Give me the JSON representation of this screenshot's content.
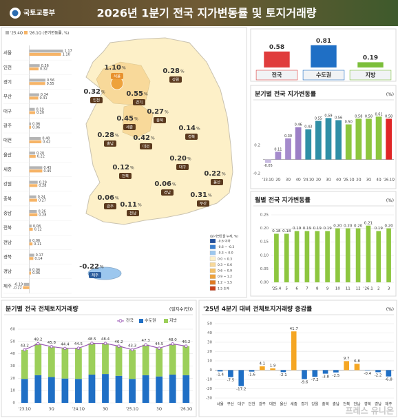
{
  "header": {
    "org": "국토교통부",
    "title": "2026년 1분기 전국 지가변동률 및 토지거래량",
    "watermark": "프레스 유니온"
  },
  "map": {
    "unit": "%",
    "legend_title": "(분기변동률 누계, %)",
    "legend": [
      {
        "label": "-0.6 이하",
        "color": "#1f4e9c"
      },
      {
        "label": "-0.6 ~ -0.3",
        "color": "#3b7fd0"
      },
      {
        "label": "-0.3 ~ 0.0",
        "color": "#9cc7ee"
      },
      {
        "label": "0.0 ~ 0.3",
        "color": "#fdf0c8"
      },
      {
        "label": "0.3 ~ 0.6",
        "color": "#f8d99a"
      },
      {
        "label": "0.6 ~ 0.9",
        "color": "#f3c066"
      },
      {
        "label": "0.9 ~ 1.2",
        "color": "#eea23c"
      },
      {
        "label": "1.2 ~ 1.5",
        "color": "#e07a22"
      },
      {
        "label": "1.5 초과",
        "color": "#c9401a"
      }
    ]
  },
  "chart_data": [
    {
      "type": "hbar",
      "subtitle": "(분기변동률, %)",
      "categories": [
        "서울",
        "인천",
        "경기",
        "부산",
        "대구",
        "광주",
        "대전",
        "울산",
        "세종",
        "강원",
        "충북",
        "충남",
        "전북",
        "전남",
        "경북",
        "경남",
        "제주"
      ],
      "series": [
        {
          "name": "'25.4Q",
          "color": "#b4b4b4",
          "values": [
            1.17,
            0.36,
            0.56,
            0.34,
            0.19,
            0.06,
            0.4,
            0.2,
            0.45,
            0.29,
            0.24,
            0.26,
            0.08,
            0.06,
            0.17,
            0.06,
            -0.19
          ],
          "value_labels": [
            "1.17",
            "0.36",
            "0.56",
            "0.34",
            "0.19",
            "0.06",
            "0.40",
            "0.20",
            "0.45",
            "0.29",
            "0.24",
            "0.26",
            "0.08",
            "0.06",
            "0.17",
            "0.06",
            "-0.19"
          ]
        },
        {
          "name": "'26.1Q",
          "color": "#f6b467",
          "values": [
            1.1,
            0.32,
            0.55,
            0.31,
            0.2,
            0.06,
            0.42,
            0.22,
            0.45,
            0.28,
            0.27,
            0.28,
            0.12,
            0.11,
            0.14,
            0.06,
            -0.22
          ],
          "value_labels": [
            "1.10",
            "0.32",
            "0.55",
            "0.31",
            "0.20",
            "0.06",
            "0.42",
            "0.22",
            "0.45",
            "0.28",
            "0.27",
            "0.28",
            "0.12",
            "0.11",
            "0.14",
            "0.06",
            "-0.22"
          ]
        }
      ],
      "xlim": [
        -0.3,
        1.3
      ]
    },
    {
      "type": "bar",
      "categories": [
        "전국",
        "수도권",
        "지방"
      ],
      "values": [
        0.58,
        0.81,
        0.19
      ],
      "colors": [
        "#e03c3c",
        "#1f6fc5",
        "#7cbf3a"
      ],
      "ylim": [
        0,
        1
      ]
    },
    {
      "type": "bar",
      "title": "분기별 전국 지가변동률",
      "unit": "(%)",
      "categories": [
        "'23.1Q",
        "2Q",
        "3Q",
        "4Q",
        "'24.1Q",
        "2Q",
        "3Q",
        "4Q",
        "'25.1Q",
        "2Q",
        "3Q",
        "4Q",
        "'26.1Q"
      ],
      "values": [
        -0.05,
        0.11,
        0.3,
        0.46,
        0.43,
        0.55,
        0.59,
        0.56,
        0.5,
        0.58,
        0.58,
        0.61,
        0.58
      ],
      "value_labels": [
        "-0.05",
        "0.11",
        "0.30",
        "0.46",
        "0.43",
        "0.55",
        "0.59",
        "0.56",
        "0.50",
        "0.58",
        "0.58",
        "0.61",
        "0.58"
      ],
      "colors": [
        "#c9bbe2",
        "#a58bcc",
        "#a58bcc",
        "#9c7fc6",
        "#2f8fa6",
        "#2f8fa6",
        "#2f8fa6",
        "#2f8fa6",
        "#8dc63f",
        "#8dc63f",
        "#8dc63f",
        "#8dc63f",
        "#e02626"
      ],
      "ylim": [
        -0.2,
        0.8
      ],
      "yticks": [
        -0.2,
        0.2
      ],
      "grid": false
    },
    {
      "type": "bar",
      "title": "월별 전국 지가변동률",
      "unit": "(%)",
      "categories": [
        "'25.4",
        "5",
        "6",
        "7",
        "8",
        "9",
        "10",
        "11",
        "12",
        "'26.1",
        "2",
        "3"
      ],
      "values": [
        0.18,
        0.18,
        0.19,
        0.19,
        0.19,
        0.19,
        0.2,
        0.2,
        0.2,
        0.21,
        0.19,
        0.2
      ],
      "value_labels": [
        "0.18",
        "0.18",
        "0.19",
        "0.19",
        "0.19",
        "0.19",
        "0.20",
        "0.20",
        "0.20",
        "0.21",
        "0.19",
        "0.20"
      ],
      "color": "#8dc63f",
      "ylim": [
        0,
        0.25
      ],
      "yticks": [
        {
          "value": 0,
          "label": "0.00"
        },
        {
          "value": 0.05,
          "label": "0.05"
        },
        {
          "value": 0.1,
          "label": "0.10"
        },
        {
          "value": 0.15,
          "label": "0.15"
        },
        {
          "value": 0.2,
          "label": "0.20"
        },
        {
          "value": 0.25,
          "label": "0.25"
        }
      ],
      "grid": true
    },
    {
      "type": "combo",
      "title": "분기별 전국 전체토지거래량",
      "unit": "(필지수(만))",
      "categories": [
        "'23.1Q",
        null,
        "3Q",
        null,
        "'24.1Q",
        null,
        "3Q",
        null,
        "'25.1Q",
        null,
        "3Q",
        null,
        "'26.1Q"
      ],
      "series": [
        {
          "name": "전국",
          "type": "line",
          "color": "#9b59b6",
          "values": [
            43.2,
            48.2,
            45.8,
            44.4,
            44.5,
            48.5,
            48.4,
            46.2,
            43.3,
            47.3,
            44.5,
            48.0,
            46.2
          ],
          "value_labels": [
            "43.2",
            "48.2",
            "45.8",
            "44.4",
            "44.5",
            "48.5",
            "48.4",
            "46.2",
            "43.3",
            "47.3",
            "44.5",
            "48.0",
            "46.2"
          ]
        },
        {
          "name": "수도권",
          "color": "#1f6fc5",
          "values": [
            19.5,
            22.5,
            21.0,
            19.8,
            19.5,
            23.0,
            23.5,
            22.0,
            19.5,
            22.5,
            21.5,
            23.0,
            22.5
          ]
        },
        {
          "name": "지방",
          "color": "#9ccf5a",
          "values": [
            23.7,
            25.7,
            24.8,
            24.6,
            25.0,
            25.5,
            24.9,
            24.2,
            23.8,
            24.8,
            23.0,
            25.0,
            23.7
          ]
        }
      ],
      "ylim": [
        0,
        60
      ],
      "yticks": [
        0,
        10,
        20,
        30,
        40,
        50,
        60
      ],
      "grid": true
    },
    {
      "type": "bar",
      "title": "'25년 4분기 대비 전체토지거래량 증감률",
      "unit": "(%)",
      "categories": [
        "서울",
        "부산",
        "대구",
        "인천",
        "광주",
        "대전",
        "울산",
        "세종",
        "경기",
        "강원",
        "충북",
        "충남",
        "전북",
        "전남",
        "경북",
        "경남",
        "제주"
      ],
      "values": [
        -1.4,
        -7.5,
        -17.2,
        -1.6,
        4.1,
        1.9,
        -2.1,
        41.7,
        -9.6,
        -7.2,
        -3.8,
        -2.5,
        9.7,
        6.8,
        -0.4,
        -2.2,
        -6.8
      ],
      "color_positive": "#f5a623",
      "color_negative": "#1f6fc5",
      "ylim": [
        -30,
        50
      ],
      "yticks": [
        -30,
        -20,
        -10,
        0,
        10,
        20,
        30,
        40,
        50
      ],
      "grid": true
    }
  ]
}
